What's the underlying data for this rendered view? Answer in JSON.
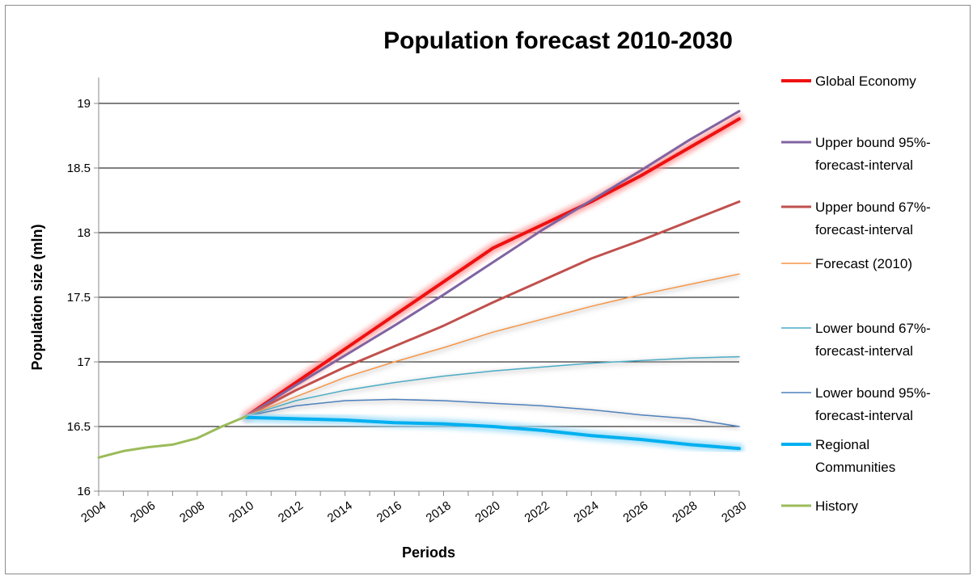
{
  "chart_data": {
    "type": "line",
    "title": "Population forecast 2010-2030",
    "xlabel": "Periods",
    "ylabel": "Population size (mln)",
    "xlim": [
      2004,
      2030
    ],
    "ylim": [
      16,
      19.2
    ],
    "x_ticks": [
      "2004",
      "2006",
      "2008",
      "2010",
      "2012",
      "2014",
      "2016",
      "2018",
      "2020",
      "2022",
      "2024",
      "2026",
      "2028",
      "2030"
    ],
    "y_ticks": [
      "16",
      "16.5",
      "17",
      "17.5",
      "18",
      "18.5",
      "19"
    ],
    "grid": "horizontal",
    "legend_position": "right",
    "series": [
      {
        "name": "Global Economy",
        "color": "#ee1111",
        "width": 4,
        "glow": "#ff9a9a",
        "legend_lines": [
          "Global Economy"
        ],
        "x": [
          2010,
          2012,
          2014,
          2016,
          2018,
          2020,
          2022,
          2024,
          2026,
          2028,
          2030
        ],
        "y": [
          16.58,
          16.84,
          17.1,
          17.36,
          17.62,
          17.88,
          18.06,
          18.24,
          18.44,
          18.66,
          18.88
        ]
      },
      {
        "name": "Upper bound 95%-forecast-interval",
        "color": "#8064a2",
        "width": 3,
        "legend_lines": [
          "Upper bound 95%-",
          "forecast-interval"
        ],
        "x": [
          2010,
          2012,
          2014,
          2016,
          2018,
          2020,
          2022,
          2024,
          2026,
          2028,
          2030
        ],
        "y": [
          16.58,
          16.82,
          17.05,
          17.28,
          17.52,
          17.77,
          18.02,
          18.25,
          18.48,
          18.72,
          18.94
        ]
      },
      {
        "name": "Upper bound 67%-forecast-interval",
        "color": "#c0504d",
        "width": 3,
        "legend_lines": [
          "Upper bound 67%-",
          "forecast-interval"
        ],
        "x": [
          2010,
          2012,
          2014,
          2016,
          2018,
          2020,
          2022,
          2024,
          2026,
          2028,
          2030
        ],
        "y": [
          16.58,
          16.78,
          16.96,
          17.12,
          17.28,
          17.46,
          17.63,
          17.8,
          17.94,
          18.09,
          18.24
        ]
      },
      {
        "name": "Forecast (2010)",
        "color": "#f79646",
        "width": 1.5,
        "legend_lines": [
          "Forecast (2010)"
        ],
        "x": [
          2010,
          2012,
          2014,
          2016,
          2018,
          2020,
          2022,
          2024,
          2026,
          2028,
          2030
        ],
        "y": [
          16.58,
          16.73,
          16.88,
          17.0,
          17.11,
          17.23,
          17.33,
          17.43,
          17.52,
          17.6,
          17.68
        ]
      },
      {
        "name": "Lower bound 67%-forecast-interval",
        "color": "#4bacc6",
        "width": 1.5,
        "legend_lines": [
          "Lower bound 67%-",
          "forecast-interval"
        ],
        "x": [
          2010,
          2012,
          2014,
          2016,
          2018,
          2020,
          2022,
          2024,
          2026,
          2028,
          2030
        ],
        "y": [
          16.58,
          16.7,
          16.78,
          16.84,
          16.89,
          16.93,
          16.96,
          16.99,
          17.01,
          17.03,
          17.04
        ]
      },
      {
        "name": "Lower bound 95%-forecast-interval",
        "color": "#4f81bd",
        "width": 1.5,
        "legend_lines": [
          "Lower bound 95%-",
          "forecast-interval"
        ],
        "x": [
          2010,
          2012,
          2014,
          2016,
          2018,
          2020,
          2022,
          2024,
          2026,
          2028,
          2030
        ],
        "y": [
          16.58,
          16.66,
          16.7,
          16.71,
          16.7,
          16.68,
          16.66,
          16.63,
          16.59,
          16.56,
          16.5
        ]
      },
      {
        "name": "Regional Communities",
        "color": "#00b0f0",
        "width": 4,
        "glow": "#9fdcf7",
        "legend_lines": [
          "Regional",
          "Communities"
        ],
        "x": [
          2010,
          2012,
          2014,
          2016,
          2018,
          2020,
          2022,
          2024,
          2026,
          2028,
          2030
        ],
        "y": [
          16.57,
          16.56,
          16.55,
          16.53,
          16.52,
          16.5,
          16.47,
          16.43,
          16.4,
          16.36,
          16.33
        ]
      },
      {
        "name": "History",
        "color": "#9bbb59",
        "width": 3,
        "legend_lines": [
          "History"
        ],
        "x": [
          2004,
          2005,
          2006,
          2007,
          2008,
          2009,
          2010
        ],
        "y": [
          16.26,
          16.31,
          16.34,
          16.36,
          16.41,
          16.5,
          16.58
        ]
      }
    ]
  }
}
